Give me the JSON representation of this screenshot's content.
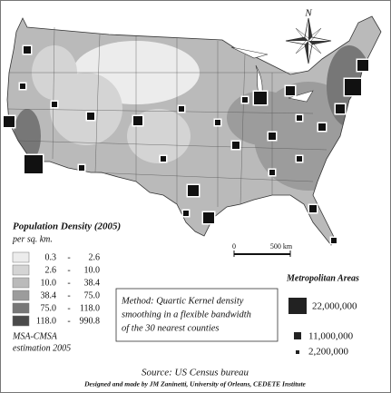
{
  "map": {
    "compass": "N",
    "scale": {
      "start": "0",
      "end": "500 km"
    },
    "legend": {
      "title": "Population Density (2005)",
      "unit": "per sq. km.",
      "separator": "-",
      "classes": [
        {
          "low": "0.3",
          "high": "2.6",
          "color": "#ececec"
        },
        {
          "low": "2.6",
          "high": "10.0",
          "color": "#d4d4d4"
        },
        {
          "low": "10.0",
          "high": "38.4",
          "color": "#bababa"
        },
        {
          "low": "38.4",
          "high": "75.0",
          "color": "#9c9c9c"
        },
        {
          "low": "75.0",
          "high": "118.0",
          "color": "#777777"
        },
        {
          "low": "118.0",
          "high": "990.8",
          "color": "#4a4a4a"
        }
      ],
      "note": [
        "MSA-CMSA",
        "estimation 2005"
      ]
    },
    "method": [
      "Method: Quartic Kernel density",
      "smoothing in a flexible bandwidth",
      "of the 30 nearest counties"
    ],
    "metro": {
      "title": "Metropolitan Areas",
      "items": [
        "22,000,000",
        "11,000,000",
        "2,200,000"
      ]
    },
    "source": "Source: US Census bureau",
    "credit": "Designed and made by JM Zaninetti, University of Orleans, CEDETE Institute"
  }
}
